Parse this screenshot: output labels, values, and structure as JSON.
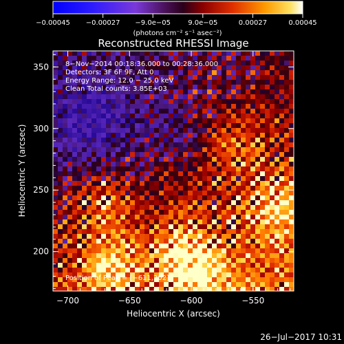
{
  "chart_data": {
    "type": "heatmap",
    "title": "Reconstructed RHESSI Image",
    "xlabel": "Heliocentric X (arcsec)",
    "ylabel": "Heliocentric Y (arcsec)",
    "xlim": [
      -712,
      -517
    ],
    "ylim": [
      168,
      363
    ],
    "x_ticks": [
      -700,
      -650,
      -600,
      -550
    ],
    "x_tick_labels": [
      "−700",
      "−650",
      "−600",
      "−550"
    ],
    "y_ticks": [
      200,
      250,
      300,
      350
    ],
    "y_tick_labels": [
      "200",
      "250",
      "300",
      "350"
    ],
    "colorbar": {
      "range": [
        -0.00045,
        0.00045
      ],
      "ticks": [
        -0.00045,
        -0.00027,
        -9e-05,
        9e-05,
        0.00027,
        0.00045
      ],
      "tick_labels": [
        "−0.00045",
        "−0.00027",
        "−9.0e−05",
        "9.0e−05",
        "0.00027",
        "0.00045"
      ],
      "unit_label": "(photons cm⁻² s⁻¹ asec⁻²)"
    },
    "annotations": {
      "time": "8−Nov−2014 00:18:36.000 to 00:28:36.000",
      "detectors": "Detectors: 3F 6F 9F, Att 0",
      "energy": "Energy Range: 12.0 − 25.0 keV",
      "clean": "Clean     Total counts: 3.85E+03",
      "peak": "Position of Peak = [−611,202]"
    },
    "peak": [
      -611,
      202
    ],
    "footer_timestamp": "26−Jul−2017 10:31",
    "colors": {
      "background": "#000000",
      "low": "#0000ff",
      "mid": "#3c0a4c",
      "high": "#ffffff"
    }
  }
}
